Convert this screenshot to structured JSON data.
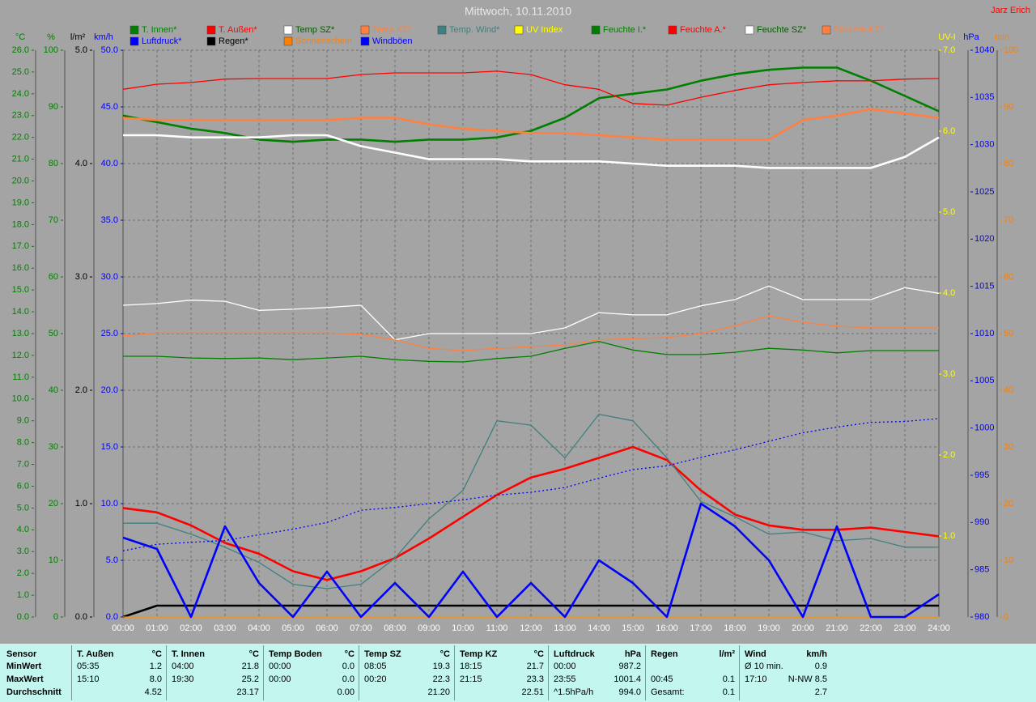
{
  "chart_data": {
    "type": "line",
    "title": "Mittwoch, 10.11.2010",
    "author": "Jarz Erich",
    "grid": true,
    "x": [
      0,
      1,
      2,
      3,
      4,
      5,
      6,
      7,
      8,
      9,
      10,
      11,
      12,
      13,
      14,
      15,
      16,
      17,
      18,
      19,
      20,
      21,
      22,
      23,
      24
    ],
    "xlim": [
      0,
      24
    ],
    "xticks": [
      {
        "value": 0,
        "label": "00:00"
      },
      {
        "value": 1,
        "label": "01:00"
      },
      {
        "value": 2,
        "label": "02:00"
      },
      {
        "value": 3,
        "label": "03:00"
      },
      {
        "value": 4,
        "label": "04:00"
      },
      {
        "value": 5,
        "label": "05:00"
      },
      {
        "value": 6,
        "label": "06:00"
      },
      {
        "value": 7,
        "label": "07:00"
      },
      {
        "value": 8,
        "label": "08:00"
      },
      {
        "value": 9,
        "label": "09:00"
      },
      {
        "value": 10,
        "label": "10:00"
      },
      {
        "value": 11,
        "label": "11:00"
      },
      {
        "value": 12,
        "label": "12:00"
      },
      {
        "value": 13,
        "label": "13:00"
      },
      {
        "value": 14,
        "label": "14:00"
      },
      {
        "value": 15,
        "label": "15:00"
      },
      {
        "value": 16,
        "label": "16:00"
      },
      {
        "value": 17,
        "label": "17:00"
      },
      {
        "value": 18,
        "label": "18:00"
      },
      {
        "value": 19,
        "label": "19:00"
      },
      {
        "value": 20,
        "label": "20:00"
      },
      {
        "value": 21,
        "label": "21:00"
      },
      {
        "value": 22,
        "label": "22:00"
      },
      {
        "value": 23,
        "label": "23:00"
      },
      {
        "value": 24,
        "label": "24:00"
      }
    ],
    "axes": [
      {
        "label": "°C",
        "color": "#008000",
        "ylim": [
          0,
          26
        ],
        "yticks": [
          {
            "value": 0,
            "label": "0.0"
          },
          {
            "value": 1,
            "label": "1.0"
          },
          {
            "value": 2,
            "label": "2.0"
          },
          {
            "value": 3,
            "label": "3.0"
          },
          {
            "value": 4,
            "label": "4.0"
          },
          {
            "value": 5,
            "label": "5.0"
          },
          {
            "value": 6,
            "label": "6.0"
          },
          {
            "value": 7,
            "label": "7.0"
          },
          {
            "value": 8,
            "label": "8.0"
          },
          {
            "value": 9,
            "label": "9.0"
          },
          {
            "value": 10,
            "label": "10.0"
          },
          {
            "value": 11,
            "label": "11.0"
          },
          {
            "value": 12,
            "label": "12.0"
          },
          {
            "value": 13,
            "label": "13.0"
          },
          {
            "value": 14,
            "label": "14.0"
          },
          {
            "value": 15,
            "label": "15.0"
          },
          {
            "value": 16,
            "label": "16.0"
          },
          {
            "value": 17,
            "label": "17.0"
          },
          {
            "value": 18,
            "label": "18.0"
          },
          {
            "value": 19,
            "label": "19.0"
          },
          {
            "value": 20,
            "label": "20.0"
          },
          {
            "value": 21,
            "label": "21.0"
          },
          {
            "value": 22,
            "label": "22.0"
          },
          {
            "value": 23,
            "label": "23.0"
          },
          {
            "value": 24,
            "label": "24.0"
          },
          {
            "value": 25,
            "label": "25.0"
          },
          {
            "value": 26,
            "label": "26.0"
          }
        ]
      },
      {
        "label": "%",
        "color": "#008000",
        "ylim": [
          0,
          100
        ],
        "yticks": [
          0,
          10,
          20,
          30,
          40,
          50,
          60,
          70,
          80,
          90,
          100
        ]
      },
      {
        "label": "l/m²",
        "color": "#000000",
        "ylim": [
          0,
          5
        ],
        "yticks": [
          {
            "value": 0,
            "label": "0.0"
          },
          {
            "value": 1,
            "label": "1.0"
          },
          {
            "value": 2,
            "label": "2.0"
          },
          {
            "value": 3,
            "label": "3.0"
          },
          {
            "value": 4,
            "label": "4.0"
          },
          {
            "value": 5,
            "label": "5.0"
          }
        ]
      },
      {
        "label": "km/h",
        "color": "#0000ff",
        "ylim": [
          0,
          50
        ],
        "yticks": [
          {
            "value": 0,
            "label": "0.0"
          },
          {
            "value": 5,
            "label": "5.0"
          },
          {
            "value": 10,
            "label": "10.0"
          },
          {
            "value": 15,
            "label": "15.0"
          },
          {
            "value": 20,
            "label": "20.0"
          },
          {
            "value": 25,
            "label": "25.0"
          },
          {
            "value": 30,
            "label": "30.0"
          },
          {
            "value": 35,
            "label": "35.0"
          },
          {
            "value": 40,
            "label": "40.0"
          },
          {
            "value": 45,
            "label": "45.0"
          },
          {
            "value": 50,
            "label": "50.0"
          }
        ]
      },
      {
        "label": "UV-I",
        "color": "#ffff00",
        "ylim": [
          0,
          7
        ],
        "yticks": [
          {
            "value": 1,
            "label": "1.0"
          },
          {
            "value": 2,
            "label": "2.0"
          },
          {
            "value": 3,
            "label": "3.0"
          },
          {
            "value": 4,
            "label": "4.0"
          },
          {
            "value": 5,
            "label": "5.0"
          },
          {
            "value": 6,
            "label": "6.0"
          },
          {
            "value": 7,
            "label": "7.0"
          }
        ]
      },
      {
        "label": "hPa",
        "color": "#0000ff",
        "ylim": [
          980,
          1040
        ],
        "yticks": [
          980,
          985,
          990,
          995,
          1000,
          1005,
          1010,
          1015,
          1020,
          1025,
          1030,
          1035,
          1040
        ]
      },
      {
        "label": "min",
        "color": "#ff8000",
        "ylim": [
          0,
          100
        ],
        "yticks": [
          0,
          10,
          20,
          30,
          40,
          50,
          60,
          70,
          80,
          90,
          100
        ]
      }
    ],
    "series": [
      {
        "name": "T. Innen*",
        "color": "#008000",
        "axis": 0,
        "weight": "bold",
        "values": [
          23.0,
          22.7,
          22.4,
          22.2,
          21.9,
          21.8,
          21.9,
          21.9,
          21.8,
          21.9,
          21.9,
          22.0,
          22.3,
          22.9,
          23.8,
          24.0,
          24.2,
          24.6,
          24.9,
          25.1,
          25.2,
          25.2,
          24.6,
          23.9,
          23.2
        ]
      },
      {
        "name": "T. Außen*",
        "color": "#ff0000",
        "axis": 0,
        "weight": "bold",
        "values": [
          5.0,
          4.8,
          4.2,
          3.4,
          2.9,
          2.1,
          1.7,
          2.1,
          2.7,
          3.6,
          4.6,
          5.6,
          6.4,
          6.8,
          7.3,
          7.8,
          7.2,
          5.8,
          4.7,
          4.2,
          4.0,
          4.0,
          4.1,
          3.9,
          3.7
        ]
      },
      {
        "name": "Temp SZ*",
        "color": "#ffffff",
        "axis": 0,
        "weight": "bold",
        "values": [
          22.1,
          22.1,
          22.0,
          22.0,
          22.0,
          22.1,
          22.1,
          21.6,
          21.3,
          21.0,
          21.0,
          21.0,
          20.9,
          20.9,
          20.9,
          20.8,
          20.7,
          20.7,
          20.7,
          20.6,
          20.6,
          20.6,
          20.6,
          21.1,
          22.0
        ]
      },
      {
        "name": "Temp KZ*",
        "color": "#ff8040",
        "axis": 0,
        "weight": "bold",
        "values": [
          22.9,
          22.8,
          22.8,
          22.8,
          22.8,
          22.8,
          22.8,
          22.9,
          22.9,
          22.6,
          22.4,
          22.3,
          22.2,
          22.2,
          22.1,
          22.0,
          21.9,
          21.9,
          21.9,
          21.9,
          22.8,
          23.0,
          23.3,
          23.1,
          22.9
        ]
      },
      {
        "name": "Temp. Wind*",
        "color": "#408080",
        "axis": 0,
        "weight": "normal",
        "values": [
          4.3,
          4.3,
          3.8,
          3.2,
          2.5,
          1.5,
          1.3,
          1.5,
          2.7,
          4.5,
          5.8,
          9.0,
          8.8,
          7.3,
          9.3,
          9.0,
          7.3,
          5.3,
          4.6,
          3.8,
          3.9,
          3.5,
          3.6,
          3.2,
          3.2
        ]
      },
      {
        "name": "UV Index",
        "color": "#ffff00",
        "axis": 4,
        "weight": "normal",
        "values": [
          0,
          0,
          0,
          0,
          0,
          0,
          0,
          0,
          0,
          0,
          0,
          0,
          0,
          0,
          0,
          0,
          0,
          0,
          0,
          0,
          0,
          0,
          0,
          0,
          0
        ]
      },
      {
        "name": "Feuchte I.*",
        "color": "#008000",
        "axis": 1,
        "weight": "normal",
        "values": [
          46.0,
          46.0,
          45.7,
          45.6,
          45.7,
          45.4,
          45.7,
          46.0,
          45.4,
          45.1,
          45.0,
          45.6,
          46.0,
          47.4,
          48.6,
          47.1,
          46.3,
          46.3,
          46.7,
          47.4,
          47.1,
          46.6,
          47.0,
          47.0,
          47.0
        ]
      },
      {
        "name": "Feuchte A.*",
        "color": "#ff0000",
        "axis": 1,
        "weight": "normal",
        "values": [
          93.1,
          94.0,
          94.3,
          94.9,
          95.0,
          95.0,
          95.0,
          95.7,
          96.0,
          96.0,
          96.0,
          96.3,
          95.7,
          93.9,
          93.1,
          90.6,
          90.3,
          91.7,
          92.9,
          93.9,
          94.3,
          94.6,
          94.6,
          94.9,
          95.0
        ]
      },
      {
        "name": "Feuchte SZ*",
        "color": "#ffffff",
        "axis": 1,
        "weight": "normal",
        "values": [
          55.0,
          55.3,
          55.9,
          55.7,
          54.1,
          54.3,
          54.6,
          55.0,
          48.9,
          50.0,
          50.0,
          50.0,
          50.0,
          51.0,
          53.7,
          53.3,
          53.3,
          54.9,
          56.0,
          58.4,
          56.0,
          56.0,
          56.0,
          58.1,
          57.1
        ]
      },
      {
        "name": "Feuchte KZ*",
        "color": "#ff8040",
        "axis": 1,
        "weight": "normal",
        "values": [
          49.6,
          50.1,
          50.1,
          50.1,
          50.1,
          50.1,
          50.1,
          49.9,
          48.9,
          47.4,
          47.0,
          47.4,
          47.7,
          48.0,
          48.9,
          49.1,
          49.3,
          50.0,
          51.4,
          53.1,
          52.0,
          51.3,
          51.0,
          51.0,
          51.0
        ]
      },
      {
        "name": "Luftdruck*",
        "color": "#0000ff",
        "axis": 5,
        "weight": "dotted",
        "values": [
          987.0,
          987.7,
          987.9,
          988.1,
          988.7,
          989.3,
          990.0,
          991.3,
          991.6,
          992.0,
          992.4,
          992.9,
          993.2,
          993.7,
          994.7,
          995.6,
          996.0,
          996.9,
          997.7,
          998.6,
          999.5,
          1000.1,
          1000.6,
          1000.7,
          1001.0
        ]
      },
      {
        "name": "Regen*",
        "color": "#000000",
        "axis": 2,
        "weight": "bold",
        "values": [
          0,
          0.1,
          0.1,
          0.1,
          0.1,
          0.1,
          0.1,
          0.1,
          0.1,
          0.1,
          0.1,
          0.1,
          0.1,
          0.1,
          0.1,
          0.1,
          0.1,
          0.1,
          0.1,
          0.1,
          0.1,
          0.1,
          0.1,
          0.1,
          0.1
        ]
      },
      {
        "name": "Sonnenschein",
        "color": "#ff8000",
        "axis": 6,
        "weight": "normal",
        "values": [
          0,
          0,
          0,
          0,
          0,
          0,
          0,
          0,
          0,
          0,
          0,
          0,
          0,
          0,
          0,
          0,
          0,
          0,
          0,
          0,
          0,
          0,
          0,
          0,
          0
        ]
      },
      {
        "name": "Windböen",
        "color": "#0000ff",
        "axis": 3,
        "weight": "bold",
        "values": [
          7,
          6,
          0,
          8,
          3,
          0,
          4,
          0,
          3,
          0,
          4,
          0,
          3,
          0,
          5,
          3,
          0,
          10,
          8,
          5,
          0,
          8,
          0,
          0,
          2
        ]
      }
    ]
  },
  "stats": {
    "header": "Sensor",
    "row_labels": [
      "MinWert",
      "MaxWert",
      "Durchschnitt"
    ],
    "columns": [
      {
        "name": "T. Außen",
        "unit": "°C",
        "cells": [
          [
            "05:35",
            "1.2"
          ],
          [
            "15:10",
            "8.0"
          ],
          [
            null,
            "4.52"
          ]
        ]
      },
      {
        "name": "T. Innen",
        "unit": "°C",
        "cells": [
          [
            "04:00",
            "21.8"
          ],
          [
            "19:30",
            "25.2"
          ],
          [
            null,
            "23.17"
          ]
        ]
      },
      {
        "name": "Temp Boden",
        "unit": "°C",
        "cells": [
          [
            "00:00",
            "0.0"
          ],
          [
            "00:00",
            "0.0"
          ],
          [
            null,
            "0.00"
          ]
        ]
      },
      {
        "name": "Temp SZ",
        "unit": "°C",
        "cells": [
          [
            "08:05",
            "19.3"
          ],
          [
            "00:20",
            "22.3"
          ],
          [
            null,
            "21.20"
          ]
        ]
      },
      {
        "name": "Temp KZ",
        "unit": "°C",
        "cells": [
          [
            "18:15",
            "21.7"
          ],
          [
            "21:15",
            "23.3"
          ],
          [
            null,
            "22.51"
          ]
        ]
      },
      {
        "name": "Luftdruck",
        "unit": "hPa",
        "cells": [
          [
            "00:00",
            "987.2"
          ],
          [
            "23:55",
            "1001.4"
          ],
          [
            "^1.5hPa/h",
            "994.0"
          ]
        ]
      },
      {
        "name": "Regen",
        "unit": "l/m²",
        "cells": [
          [
            null,
            null
          ],
          [
            "00:45",
            "0.1"
          ],
          [
            "Gesamt:",
            "0.1"
          ]
        ]
      },
      {
        "name": "Wind",
        "unit": "km/h",
        "cells": [
          [
            "Ø 10 min.",
            "0.9"
          ],
          [
            "17:10",
            "N-NW 8.5"
          ],
          [
            null,
            "2.7"
          ]
        ]
      }
    ]
  }
}
